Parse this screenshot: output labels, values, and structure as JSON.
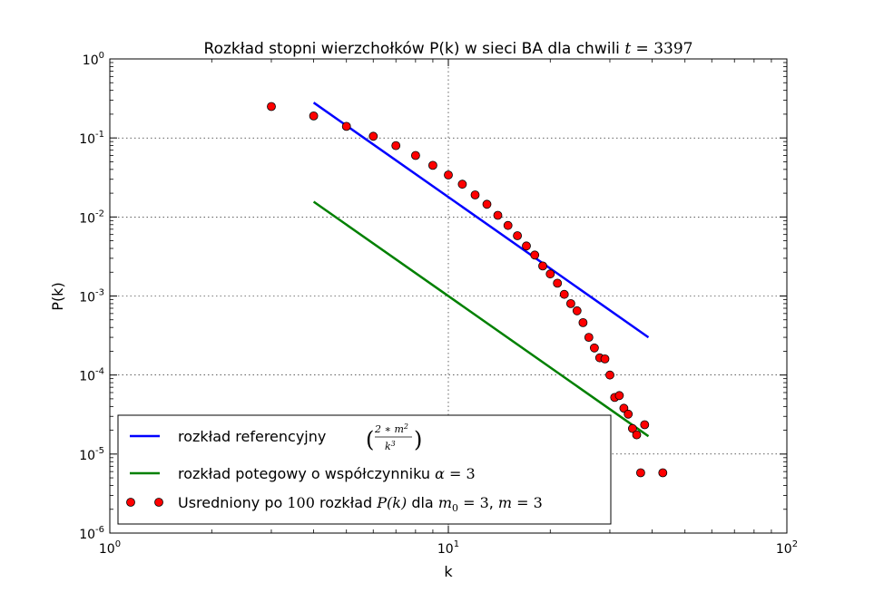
{
  "chart_data": {
    "type": "scatter",
    "title": {
      "prefix": "Rozkład stopni wierzchołków P(k) w sieci BA dla chwili ",
      "t_symbol": "t",
      "eq": " = ",
      "t_value": "3397"
    },
    "xlabel": "k",
    "ylabel": "P(k)",
    "x_scale": "log",
    "y_scale": "log",
    "xlim": [
      1,
      100
    ],
    "ylim": [
      1e-06,
      1
    ],
    "grid": true,
    "legend_position": "lower-left",
    "x_ticks": [
      {
        "value": 1,
        "base": "10",
        "exp": "0"
      },
      {
        "value": 10,
        "base": "10",
        "exp": "1"
      },
      {
        "value": 100,
        "base": "10",
        "exp": "2"
      }
    ],
    "y_ticks": [
      {
        "value": 1,
        "base": "10",
        "exp": "0"
      },
      {
        "value": 0.1,
        "base": "10",
        "exp": "-1"
      },
      {
        "value": 0.01,
        "base": "10",
        "exp": "-2"
      },
      {
        "value": 0.001,
        "base": "10",
        "exp": "-3"
      },
      {
        "value": 0.0001,
        "base": "10",
        "exp": "-4"
      },
      {
        "value": 1e-05,
        "base": "10",
        "exp": "-5"
      },
      {
        "value": 1e-06,
        "base": "10",
        "exp": "-6"
      }
    ],
    "series": [
      {
        "kind": "line",
        "color": "#0000ff",
        "x": [
          4,
          39
        ],
        "y": [
          0.28,
          0.0003
        ],
        "legend_text": "rozkład referencyjny ",
        "legend_formula": {
          "num": "2 ∗ m",
          "num_exp": "2",
          "den": "k",
          "den_exp": "3"
        }
      },
      {
        "kind": "line",
        "color": "#008000",
        "x": [
          4,
          39
        ],
        "y": [
          0.0156,
          1.68e-05
        ],
        "legend_text": "rozkład potegowy o współczynniku ",
        "legend_formula": {
          "symbol": "α",
          "eq": " = ",
          "value": "3"
        }
      },
      {
        "kind": "markers",
        "color": "#ff0000",
        "x": [
          3,
          4,
          5,
          6,
          7,
          8,
          9,
          10,
          11,
          12,
          13,
          14,
          15,
          16,
          17,
          18,
          19,
          20,
          21,
          22,
          23,
          24,
          25,
          26,
          27,
          28,
          29,
          30,
          31,
          32,
          33,
          34,
          35,
          36,
          37,
          38,
          43
        ],
        "y": [
          0.25,
          0.19,
          0.14,
          0.105,
          0.08,
          0.06,
          0.045,
          0.034,
          0.026,
          0.019,
          0.0145,
          0.0105,
          0.0078,
          0.0058,
          0.0043,
          0.0033,
          0.0024,
          0.0019,
          0.00145,
          0.00105,
          0.0008,
          0.00065,
          0.00046,
          0.0003,
          0.00022,
          0.000165,
          0.00016,
          0.0001,
          5.2e-05,
          5.5e-05,
          3.8e-05,
          3.2e-05,
          2.1e-05,
          1.75e-05,
          5.8e-06,
          2.35e-05,
          5.8e-06
        ],
        "legend_text_1": "Usredniony po ",
        "legend_n": "100",
        "legend_text_2": " rozkład ",
        "legend_pk": "P(k)",
        "legend_text_3": " dla ",
        "legend_m0": {
          "sym": "m",
          "sub": "0",
          "eq": " = ",
          "val": "3"
        },
        "legend_comma": ", ",
        "legend_m": {
          "sym": "m",
          "eq": " = ",
          "val": "3"
        }
      }
    ]
  }
}
